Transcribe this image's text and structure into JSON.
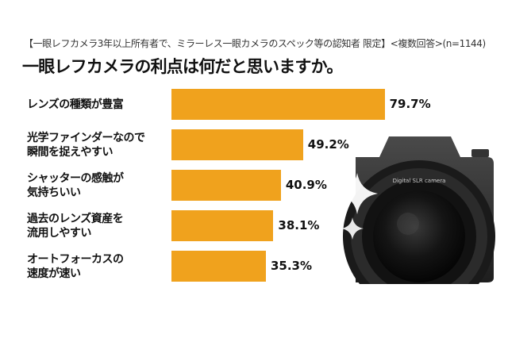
{
  "header": {
    "subtitle": "【一眼レフカメラ3年以上所有者で、ミラーレス一眼カメラのスペック等の認知者 限定】<複数回答>(n=1144)",
    "title": "一眼レフカメラの利点は何だと思いますか。"
  },
  "illustration": {
    "lens_text": "Digital SLR camera",
    "body_color": "#2a2a2a",
    "lens_color": "#111111"
  },
  "chart_data": {
    "type": "bar",
    "orientation": "horizontal",
    "categories": [
      [
        "レンズの種類が豊富"
      ],
      [
        "光学ファインダーなので",
        "瞬間を捉えやすい"
      ],
      [
        "シャッターの感触が",
        "気持ちいい"
      ],
      [
        "過去のレンズ資産を",
        "流用しやすい"
      ],
      [
        "オートフォーカスの",
        "速度が速い"
      ]
    ],
    "values": [
      79.7,
      49.2,
      40.9,
      38.1,
      35.3
    ],
    "value_labels": [
      "79.7%",
      "49.2%",
      "40.9%",
      "38.1%",
      "35.3%"
    ],
    "xlim": [
      0,
      100
    ],
    "grid": false,
    "bar_color": "#f0a21d"
  }
}
